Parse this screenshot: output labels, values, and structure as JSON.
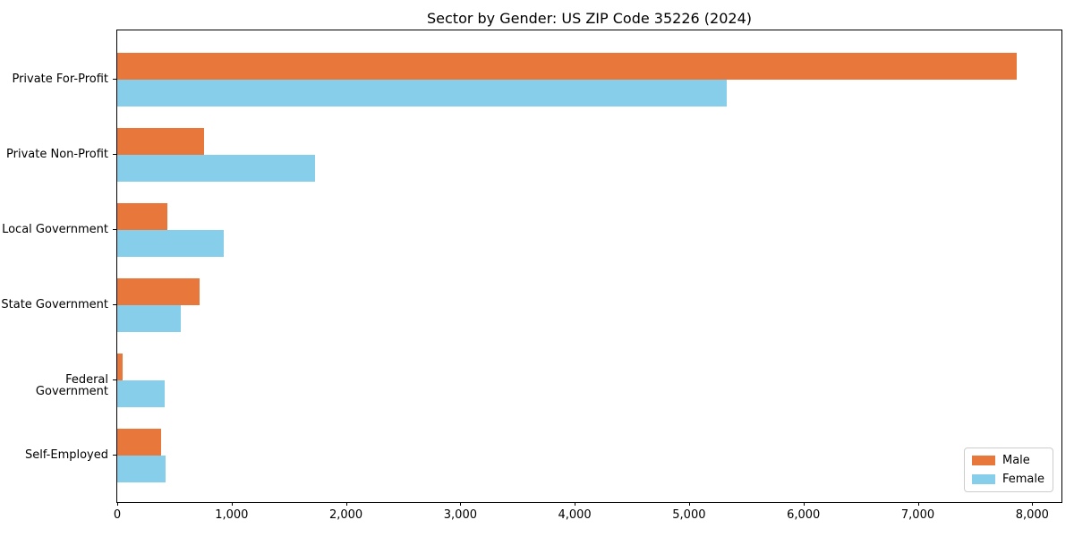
{
  "chart_data": {
    "type": "bar",
    "orientation": "horizontal",
    "title": "Sector by Gender: US ZIP Code 35226 (2024)",
    "categories": [
      "Private For-Profit",
      "Private Non-Profit",
      "Local Government",
      "State Government",
      "Federal Government",
      "Self-Employed"
    ],
    "series": [
      {
        "name": "Male",
        "color": "#E8773C",
        "values": [
          7865,
          760,
          440,
          720,
          50,
          385
        ]
      },
      {
        "name": "Female",
        "color": "#87CEEB",
        "values": [
          5325,
          1730,
          930,
          555,
          415,
          425
        ]
      }
    ],
    "xlabel": "",
    "ylabel": "",
    "xlim": [
      0,
      8256
    ],
    "xticks": [
      0,
      1000,
      2000,
      3000,
      4000,
      5000,
      6000,
      7000,
      8000
    ],
    "xtick_labels": [
      "0",
      "1,000",
      "2,000",
      "3,000",
      "4,000",
      "5,000",
      "6,000",
      "7,000",
      "8,000"
    ],
    "grid": false,
    "legend_position": "lower right"
  }
}
